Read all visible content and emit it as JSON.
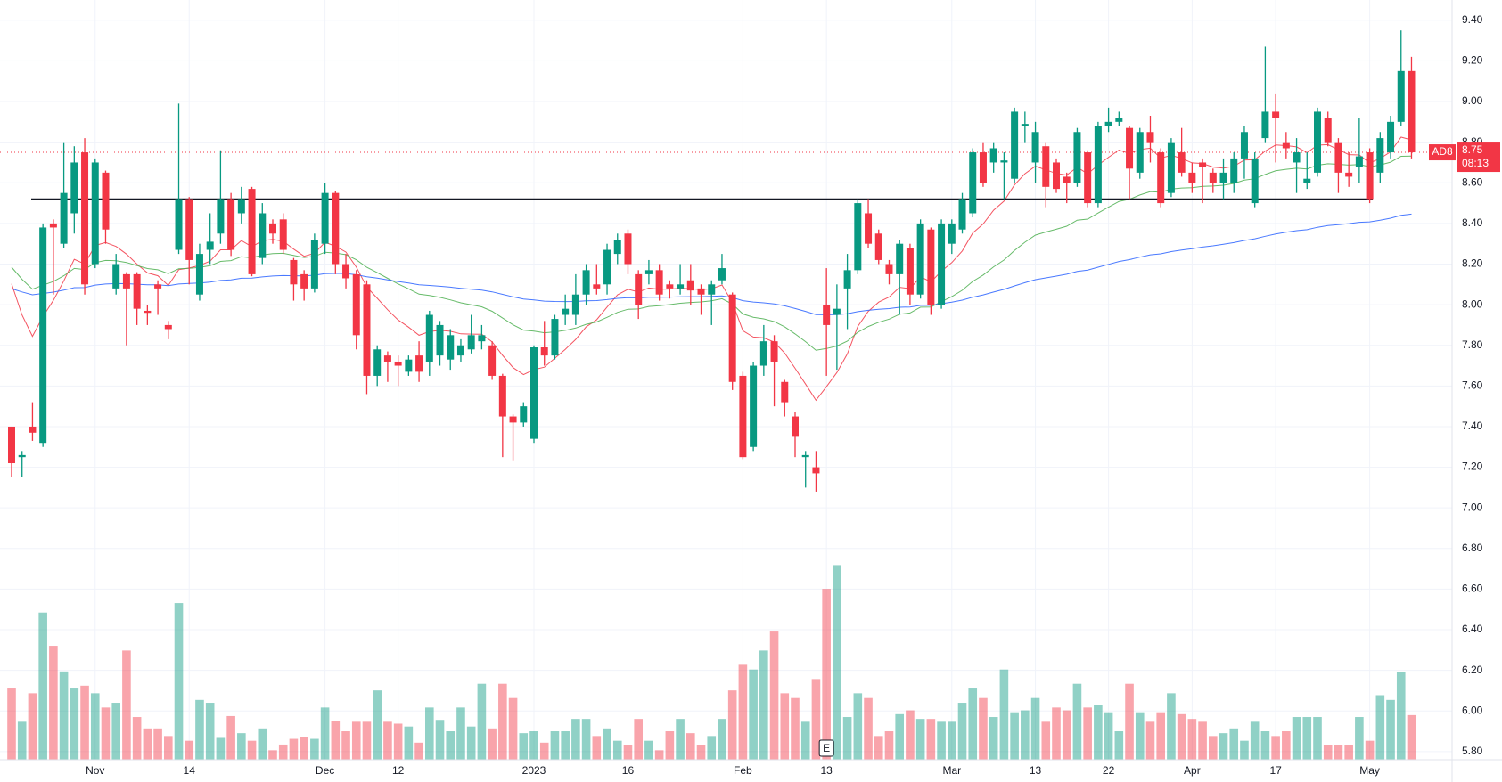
{
  "chart_data": {
    "type": "candlestick",
    "symbol": "AD8",
    "countdown": "08:13",
    "up_color": "#089981",
    "down_color": "#f23645",
    "ylim": [
      5.76,
      9.5
    ],
    "yticks": [
      {
        "value": 5.8,
        "label": "5.80"
      },
      {
        "value": 6.0,
        "label": "6.00"
      },
      {
        "value": 6.2,
        "label": "6.20"
      },
      {
        "value": 6.4,
        "label": "6.40"
      },
      {
        "value": 6.6,
        "label": "6.60"
      },
      {
        "value": 6.8,
        "label": "6.80"
      },
      {
        "value": 7.0,
        "label": "7.00"
      },
      {
        "value": 7.2,
        "label": "7.20"
      },
      {
        "value": 7.4,
        "label": "7.40"
      },
      {
        "value": 7.6,
        "label": "7.60"
      },
      {
        "value": 7.8,
        "label": "7.80"
      },
      {
        "value": 8.0,
        "label": "8.00"
      },
      {
        "value": 8.2,
        "label": "8.20"
      },
      {
        "value": 8.4,
        "label": "8.40"
      },
      {
        "value": 8.6,
        "label": "8.60"
      },
      {
        "value": 8.8,
        "label": "8.80"
      },
      {
        "value": 9.0,
        "label": "9.00"
      },
      {
        "value": 9.2,
        "label": "9.20"
      },
      {
        "value": 9.4,
        "label": "9.40"
      }
    ],
    "xticks": [
      {
        "value": 8,
        "label": "Nov"
      },
      {
        "value": 17,
        "label": "14"
      },
      {
        "value": 30,
        "label": "Dec"
      },
      {
        "value": 37,
        "label": "12"
      },
      {
        "value": 50,
        "label": "2023"
      },
      {
        "value": 59,
        "label": "16"
      },
      {
        "value": 70,
        "label": "Feb"
      },
      {
        "value": 78,
        "label": "13"
      },
      {
        "value": 90,
        "label": "Mar"
      },
      {
        "value": 98,
        "label": "13"
      },
      {
        "value": 105,
        "label": "22"
      },
      {
        "value": 113,
        "label": "Apr"
      },
      {
        "value": 121,
        "label": "17"
      },
      {
        "value": 130,
        "label": "May"
      }
    ],
    "grid": true,
    "open": [
      7.4,
      7.25,
      7.4,
      7.32,
      8.4,
      8.3,
      8.45,
      8.75,
      8.2,
      8.65,
      8.08,
      8.15,
      8.15,
      7.97,
      8.1,
      7.9,
      8.27,
      8.52,
      8.05,
      8.27,
      8.35,
      8.52,
      8.45,
      8.57,
      8.23,
      8.4,
      8.42,
      8.22,
      8.15,
      8.08,
      8.3,
      8.55,
      8.2,
      8.15,
      8.1,
      7.65,
      7.75,
      7.72,
      7.67,
      7.75,
      7.72,
      7.75,
      7.73,
      7.75,
      7.78,
      7.82,
      7.8,
      7.65,
      7.45,
      7.42,
      7.34,
      7.79,
      7.75,
      7.95,
      7.95,
      8.05,
      8.1,
      8.1,
      8.25,
      8.35,
      8.15,
      8.15,
      8.17,
      8.1,
      8.08,
      8.12,
      8.08,
      8.05,
      8.12,
      8.05,
      7.65,
      7.3,
      7.7,
      7.82,
      7.62,
      7.45,
      7.25,
      7.2,
      8.0,
      7.95,
      8.08,
      8.17,
      8.45,
      8.35,
      8.2,
      8.15,
      8.28,
      8.05,
      8.37,
      8.0,
      8.3,
      8.37,
      8.45,
      8.75,
      8.7,
      8.7,
      8.62,
      8.88,
      8.7,
      8.78,
      8.7,
      8.63,
      8.6,
      8.75,
      8.5,
      8.88,
      8.9,
      8.87,
      8.65,
      8.85,
      8.75,
      8.55,
      8.75,
      8.65,
      8.7,
      8.65,
      8.6,
      8.6,
      8.72,
      8.5,
      8.82,
      8.95,
      8.8,
      8.7,
      8.6,
      8.65,
      8.92,
      8.8,
      8.65,
      8.68,
      8.75,
      8.65,
      8.75,
      8.9,
      9.15
    ],
    "high": [
      7.4,
      7.28,
      7.52,
      8.4,
      8.42,
      8.8,
      8.78,
      8.82,
      8.72,
      8.66,
      8.25,
      8.16,
      8.16,
      8.0,
      8.12,
      7.92,
      8.99,
      8.53,
      8.3,
      8.45,
      8.76,
      8.55,
      8.58,
      8.58,
      8.5,
      8.42,
      8.45,
      8.23,
      8.17,
      8.35,
      8.6,
      8.56,
      8.25,
      8.17,
      8.12,
      7.8,
      7.77,
      7.75,
      7.75,
      7.82,
      7.97,
      7.92,
      7.88,
      7.83,
      7.95,
      7.9,
      7.82,
      7.66,
      7.46,
      7.52,
      7.8,
      7.92,
      7.95,
      8.05,
      8.15,
      8.2,
      8.2,
      8.3,
      8.35,
      8.37,
      8.17,
      8.22,
      8.2,
      8.12,
      8.2,
      8.2,
      8.1,
      8.12,
      8.25,
      8.06,
      7.67,
      7.72,
      7.9,
      7.85,
      7.63,
      7.47,
      7.28,
      7.28,
      8.18,
      8.1,
      8.25,
      8.52,
      8.52,
      8.37,
      8.22,
      8.32,
      8.3,
      8.42,
      8.38,
      8.42,
      8.42,
      8.55,
      8.77,
      8.8,
      8.8,
      8.75,
      8.97,
      8.95,
      8.9,
      8.8,
      8.72,
      8.65,
      8.87,
      8.76,
      8.9,
      8.97,
      8.95,
      8.88,
      8.87,
      8.93,
      8.77,
      8.82,
      8.87,
      8.7,
      8.72,
      8.67,
      8.72,
      8.75,
      8.88,
      8.75,
      9.27,
      9.04,
      8.85,
      8.82,
      8.75,
      8.97,
      8.95,
      8.82,
      8.75,
      8.92,
      8.77,
      8.85,
      8.93,
      9.35,
      9.22
    ],
    "low": [
      7.15,
      7.15,
      7.33,
      7.3,
      8.05,
      8.28,
      8.35,
      8.05,
      8.18,
      8.3,
      8.05,
      7.8,
      7.9,
      7.9,
      7.95,
      7.83,
      8.25,
      8.1,
      8.02,
      8.2,
      8.3,
      8.24,
      8.4,
      8.14,
      8.2,
      8.3,
      8.25,
      8.02,
      8.02,
      8.06,
      8.25,
      8.15,
      8.08,
      7.78,
      7.56,
      7.6,
      7.62,
      7.6,
      7.65,
      7.62,
      7.65,
      7.7,
      7.68,
      7.72,
      7.76,
      7.78,
      7.63,
      7.25,
      7.23,
      7.4,
      7.32,
      7.7,
      7.73,
      7.9,
      7.9,
      8.0,
      8.05,
      8.05,
      8.2,
      8.15,
      7.93,
      8.1,
      8.02,
      8.03,
      8.05,
      8.0,
      7.95,
      7.9,
      8.1,
      7.58,
      7.24,
      7.28,
      7.65,
      7.5,
      7.45,
      7.25,
      7.1,
      7.08,
      7.65,
      7.68,
      7.88,
      8.15,
      8.28,
      8.2,
      8.1,
      7.95,
      8.0,
      8.03,
      7.95,
      7.98,
      8.25,
      8.35,
      8.43,
      8.58,
      8.65,
      8.52,
      8.6,
      8.8,
      8.6,
      8.48,
      8.55,
      8.5,
      8.58,
      8.48,
      8.48,
      8.85,
      8.88,
      8.52,
      8.62,
      8.7,
      8.48,
      8.53,
      8.63,
      8.55,
      8.5,
      8.55,
      8.52,
      8.55,
      8.62,
      8.48,
      8.8,
      8.7,
      8.72,
      8.55,
      8.57,
      8.63,
      8.78,
      8.55,
      8.58,
      8.6,
      8.5,
      8.6,
      8.72,
      8.88,
      8.72
    ],
    "close": [
      7.22,
      7.26,
      7.37,
      8.38,
      8.38,
      8.55,
      8.7,
      8.1,
      8.7,
      8.37,
      8.2,
      8.08,
      7.98,
      7.96,
      8.08,
      7.88,
      8.52,
      8.22,
      8.25,
      8.31,
      8.52,
      8.27,
      8.52,
      8.15,
      8.45,
      8.35,
      8.27,
      8.1,
      8.08,
      8.32,
      8.55,
      8.2,
      8.13,
      7.85,
      7.65,
      7.78,
      7.72,
      7.7,
      7.73,
      7.67,
      7.95,
      7.9,
      7.85,
      7.8,
      7.85,
      7.85,
      7.65,
      7.45,
      7.42,
      7.5,
      7.79,
      7.75,
      7.93,
      7.98,
      8.05,
      8.17,
      8.08,
      8.27,
      8.32,
      8.2,
      8.0,
      8.17,
      8.05,
      8.08,
      8.1,
      8.07,
      8.05,
      8.1,
      8.18,
      7.62,
      7.25,
      7.7,
      7.82,
      7.72,
      7.52,
      7.35,
      7.26,
      7.17,
      7.9,
      7.98,
      8.17,
      8.5,
      8.3,
      8.22,
      8.15,
      8.3,
      8.05,
      8.4,
      8.0,
      8.4,
      8.4,
      8.52,
      8.75,
      8.6,
      8.77,
      8.71,
      8.95,
      8.89,
      8.85,
      8.58,
      8.57,
      8.6,
      8.85,
      8.5,
      8.88,
      8.9,
      8.92,
      8.67,
      8.85,
      8.8,
      8.5,
      8.8,
      8.65,
      8.6,
      8.68,
      8.6,
      8.65,
      8.72,
      8.85,
      8.72,
      8.95,
      8.92,
      8.77,
      8.75,
      8.62,
      8.95,
      8.8,
      8.65,
      8.63,
      8.73,
      8.52,
      8.82,
      8.9,
      9.15,
      8.75
    ],
    "volume": [
      75,
      40,
      70,
      155,
      120,
      93,
      75,
      78,
      70,
      55,
      60,
      115,
      45,
      33,
      33,
      25,
      165,
      20,
      63,
      60,
      23,
      46,
      28,
      20,
      33,
      10,
      16,
      22,
      24,
      22,
      55,
      41,
      30,
      40,
      40,
      73,
      40,
      38,
      35,
      18,
      55,
      42,
      30,
      55,
      35,
      80,
      33,
      80,
      65,
      28,
      30,
      18,
      30,
      30,
      43,
      43,
      25,
      33,
      20,
      15,
      43,
      20,
      10,
      30,
      43,
      28,
      15,
      25,
      43,
      73,
      100,
      95,
      115,
      135,
      70,
      65,
      40,
      85,
      180,
      205,
      45,
      70,
      65,
      25,
      30,
      48,
      52,
      43,
      43,
      40,
      40,
      60,
      75,
      65,
      45,
      95,
      50,
      52,
      65,
      40,
      55,
      52,
      80,
      55,
      58,
      50,
      30,
      80,
      50,
      40,
      50,
      70,
      48,
      43,
      40,
      25,
      28,
      33,
      20,
      40,
      30,
      25,
      30,
      45,
      45,
      45,
      15,
      15,
      15,
      45,
      20,
      68,
      63,
      92,
      47
    ],
    "volume_lim": [
      0,
      800
    ],
    "moving_averages": [
      {
        "period": 10,
        "color": "#f23645"
      },
      {
        "period": 30,
        "color": "#4caf50"
      },
      {
        "period": 100,
        "color": "#2962ff"
      }
    ],
    "level": 8.52,
    "last_price": {
      "value": 8.75,
      "label": "8.75"
    },
    "events": [
      {
        "index": 78,
        "label": "E"
      }
    ]
  }
}
